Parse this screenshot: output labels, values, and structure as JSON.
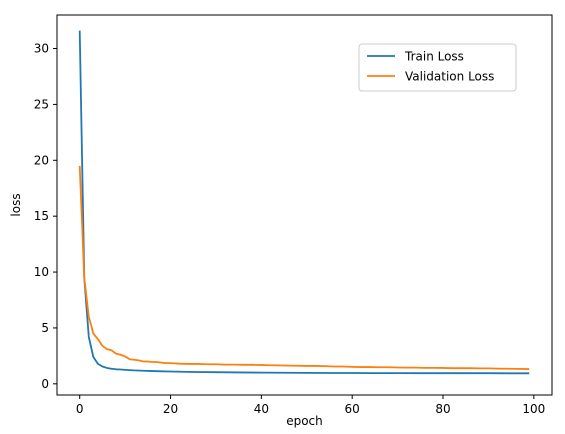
{
  "chart_data": {
    "type": "line",
    "xlabel": "epoch",
    "ylabel": "loss",
    "xlim": [
      -5,
      104
    ],
    "ylim": [
      -1,
      33
    ],
    "xticks": [
      0,
      20,
      40,
      60,
      80,
      100
    ],
    "yticks": [
      0,
      5,
      10,
      15,
      20,
      25,
      30
    ],
    "legend_position": "upper-right",
    "grid": false,
    "series": [
      {
        "name": "Train Loss",
        "color": "#1f77b4",
        "x": [
          0,
          1,
          2,
          3,
          4,
          5,
          6,
          7,
          8,
          9,
          10,
          12,
          14,
          16,
          18,
          20,
          25,
          30,
          35,
          40,
          45,
          50,
          55,
          60,
          65,
          70,
          75,
          80,
          85,
          90,
          95,
          99
        ],
        "y": [
          31.6,
          9.5,
          4.2,
          2.4,
          1.8,
          1.55,
          1.42,
          1.35,
          1.3,
          1.28,
          1.25,
          1.2,
          1.17,
          1.14,
          1.12,
          1.1,
          1.06,
          1.04,
          1.02,
          1.0,
          0.99,
          0.98,
          0.97,
          0.97,
          0.96,
          0.96,
          0.95,
          0.95,
          0.95,
          0.95,
          0.94,
          0.94
        ]
      },
      {
        "name": "Validation Loss",
        "color": "#ff7f0e",
        "x": [
          0,
          1,
          2,
          3,
          4,
          5,
          6,
          7,
          8,
          9,
          10,
          11,
          12,
          13,
          14,
          15,
          16,
          17,
          18,
          19,
          20,
          22,
          24,
          26,
          28,
          30,
          32,
          34,
          36,
          38,
          40,
          42,
          44,
          46,
          48,
          50,
          52,
          54,
          56,
          58,
          60,
          62,
          64,
          66,
          68,
          70,
          72,
          74,
          76,
          78,
          80,
          82,
          84,
          86,
          88,
          90,
          92,
          94,
          96,
          99
        ],
        "y": [
          19.5,
          9.5,
          6.0,
          4.5,
          4.0,
          3.4,
          3.1,
          3.0,
          2.7,
          2.6,
          2.45,
          2.2,
          2.15,
          2.1,
          2.0,
          2.0,
          1.95,
          1.95,
          1.9,
          1.85,
          1.85,
          1.8,
          1.78,
          1.78,
          1.75,
          1.75,
          1.72,
          1.72,
          1.7,
          1.7,
          1.68,
          1.66,
          1.65,
          1.63,
          1.62,
          1.6,
          1.6,
          1.58,
          1.55,
          1.55,
          1.52,
          1.5,
          1.5,
          1.48,
          1.48,
          1.46,
          1.45,
          1.45,
          1.43,
          1.43,
          1.42,
          1.4,
          1.4,
          1.4,
          1.38,
          1.38,
          1.36,
          1.35,
          1.34,
          1.32
        ]
      }
    ]
  }
}
